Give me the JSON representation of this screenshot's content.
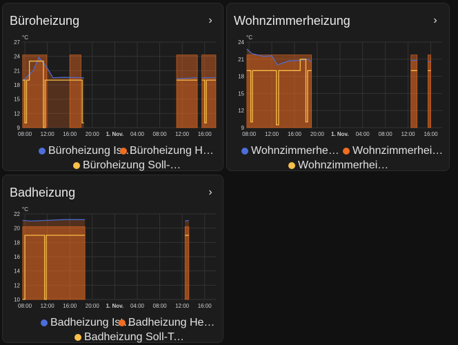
{
  "colors": {
    "ist": "#4c6ed8",
    "heiz": "#f26d21",
    "soll": "#f7c04a"
  },
  "cards": [
    {
      "title": "Büroheizung",
      "unit": "°C",
      "legend": [
        "Büroheizung Ist-Temperatur",
        "Büroheizung Heizbetrieb",
        "Büroheizung Soll-Temperatur"
      ],
      "chart_data": {
        "type": "line",
        "x_ticks": [
          "08:00",
          "12:00",
          "16:00",
          "20:00",
          "1. Nov.",
          "04:00",
          "08:00",
          "12:00",
          "16:00"
        ],
        "x_range_hours": [
          7.5,
          42
        ],
        "y_ticks": [
          "27",
          "24",
          "21",
          "18",
          "15",
          "12",
          "9"
        ],
        "ylim": [
          9,
          27
        ],
        "heating_periods": [
          [
            7.6,
            11.9
          ],
          [
            16,
            18
          ],
          [
            35,
            38.7
          ],
          [
            39.5,
            42
          ]
        ],
        "series": [
          {
            "name": "Büroheizung Ist-Temperatur",
            "segments": [
              [
                [
                  7.6,
                  18.8
                ],
                [
                  9.5,
                  21
                ],
                [
                  10.5,
                  23.8
                ],
                [
                  11.5,
                  22.3
                ],
                [
                  12,
                  21.5
                ],
                [
                  13,
                  19.5
                ],
                [
                  15,
                  19.6
                ],
                [
                  18.5,
                  19.5
                ]
              ],
              [
                [
                  35,
                  19.3
                ],
                [
                  38.7,
                  19.5
                ]
              ],
              [
                [
                  39.5,
                  19.5
                ],
                [
                  42,
                  19.5
                ]
              ]
            ]
          },
          {
            "name": "Büroheizung Soll-Temperatur",
            "segments": [
              [
                [
                  7.6,
                  19
                ],
                [
                  8,
                  19
                ],
                [
                  8,
                  10
                ],
                [
                  8.3,
                  10
                ],
                [
                  8.3,
                  19
                ],
                [
                  8.8,
                  19
                ],
                [
                  8.8,
                  23
                ],
                [
                  11.3,
                  23
                ],
                [
                  11.3,
                  9
                ],
                [
                  11.6,
                  9
                ],
                [
                  11.6,
                  19
                ],
                [
                  18.2,
                  19
                ],
                [
                  18.2,
                  10
                ],
                [
                  18.5,
                  10
                ]
              ],
              [
                [
                  35,
                  19
                ],
                [
                  38.7,
                  19
                ]
              ],
              [
                [
                  39.5,
                  19
                ],
                [
                  40,
                  19
                ],
                [
                  40,
                  10
                ],
                [
                  40.3,
                  10
                ],
                [
                  40.3,
                  19
                ],
                [
                  42,
                  19
                ]
              ]
            ]
          }
        ]
      }
    },
    {
      "title": "Wohnzimmerheizung",
      "unit": "°C",
      "legend": [
        "Wohnzimmerheizung Ist-Temperatur",
        "Wohnzimmerheizung Heizbetrieb",
        "Wohnzimmerheizung Soll-Tempera..."
      ],
      "chart_data": {
        "type": "line",
        "x_ticks": [
          "08:00",
          "12:00",
          "16:00",
          "20:00",
          "1. Nov.",
          "04:00",
          "08:00",
          "12:00",
          "16:00"
        ],
        "x_range_hours": [
          7.5,
          42
        ],
        "y_ticks": [
          "24",
          "21",
          "18",
          "15",
          "12",
          "9"
        ],
        "ylim": [
          9,
          24
        ],
        "heating_periods": [
          [
            7.6,
            19
          ],
          [
            36.5,
            37.6
          ],
          [
            39.5,
            40
          ]
        ],
        "series": [
          {
            "name": "Wohnzimmerheizung Ist-Temperatur",
            "segments": [
              [
                [
                  7.6,
                  22.8
                ],
                [
                  8.5,
                  22
                ],
                [
                  10.5,
                  21.5
                ],
                [
                  12,
                  21.6
                ],
                [
                  13,
                  20
                ],
                [
                  15,
                  20.7
                ],
                [
                  17,
                  20.8
                ],
                [
                  18.5,
                  21
                ],
                [
                  19,
                  20.5
                ]
              ],
              [
                [
                  36.5,
                  20.8
                ],
                [
                  37.6,
                  20.8
                ]
              ],
              [
                [
                  39.5,
                  20.6
                ],
                [
                  40,
                  20.6
                ]
              ]
            ]
          },
          {
            "name": "Wohnzimmerheizung Soll-Temperatur",
            "segments": [
              [
                [
                  7.6,
                  19
                ],
                [
                  8.3,
                  19
                ],
                [
                  8.3,
                  10
                ],
                [
                  8.6,
                  10
                ],
                [
                  8.6,
                  19
                ],
                [
                  12.8,
                  19
                ],
                [
                  12.8,
                  9.5
                ],
                [
                  13.2,
                  9.5
                ],
                [
                  13.2,
                  19
                ],
                [
                  17,
                  19
                ],
                [
                  17,
                  21
                ],
                [
                  18,
                  21
                ],
                [
                  18,
                  10
                ],
                [
                  18.3,
                  10
                ],
                [
                  18.3,
                  19
                ],
                [
                  19,
                  19
                ]
              ],
              [
                [
                  36.5,
                  19
                ],
                [
                  37.6,
                  19
                ]
              ],
              [
                [
                  39.5,
                  19
                ],
                [
                  40,
                  19
                ]
              ]
            ]
          }
        ]
      }
    },
    {
      "title": "Badheizung",
      "unit": "°C",
      "legend": [
        "Badheizung Ist-Temperatur",
        "Badheizung Heizbetrieb",
        "Badheizung Soll-Temperatur"
      ],
      "chart_data": {
        "type": "line",
        "x_ticks": [
          "08:00",
          "12:00",
          "16:00",
          "20:00",
          "1. Nov.",
          "04:00",
          "08:00",
          "12:00",
          "16:00"
        ],
        "x_range_hours": [
          7.5,
          42
        ],
        "y_ticks": [
          "22",
          "20",
          "18",
          "16",
          "14",
          "12",
          "10"
        ],
        "ylim": [
          10,
          22
        ],
        "heating_periods": [
          [
            7.6,
            18.7
          ],
          [
            36.5,
            37.2
          ]
        ],
        "series": [
          {
            "name": "Badheizung Ist-Temperatur",
            "segments": [
              [
                [
                  7.6,
                  21.1
                ],
                [
                  9,
                  21.0
                ],
                [
                  12,
                  21.1
                ],
                [
                  15,
                  21.2
                ],
                [
                  18.7,
                  21.2
                ]
              ],
              [
                [
                  36.5,
                  21.0
                ],
                [
                  37.2,
                  21.1
                ]
              ]
            ]
          },
          {
            "name": "Badheizung Soll-Temperatur",
            "segments": [
              [
                [
                  7.6,
                  10
                ],
                [
                  8,
                  10
                ],
                [
                  8,
                  19
                ],
                [
                  11.5,
                  19
                ],
                [
                  11.5,
                  10
                ],
                [
                  11.8,
                  10
                ],
                [
                  11.8,
                  19
                ],
                [
                  18.7,
                  19
                ]
              ],
              [
                [
                  36.5,
                  19
                ],
                [
                  37.2,
                  19
                ]
              ]
            ]
          }
        ]
      }
    }
  ]
}
